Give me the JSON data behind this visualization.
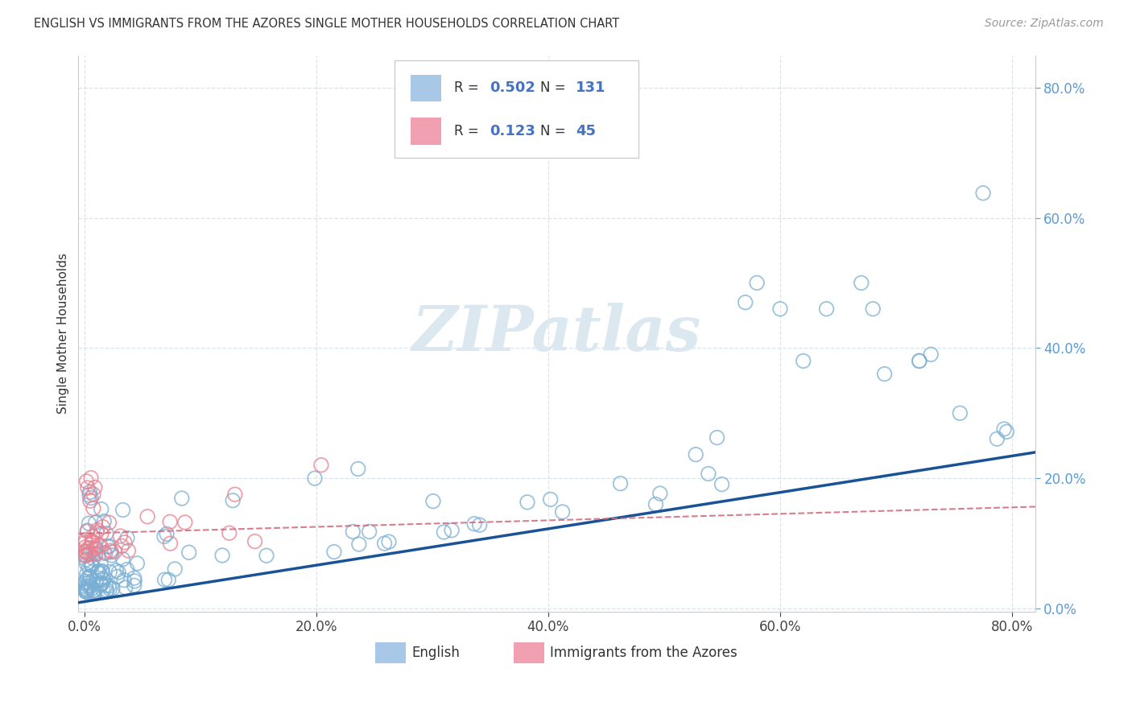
{
  "title": "ENGLISH VS IMMIGRANTS FROM THE AZORES SINGLE MOTHER HOUSEHOLDS CORRELATION CHART",
  "source": "Source: ZipAtlas.com",
  "ylabel": "Single Mother Households",
  "blue_color": "#a8c8e8",
  "pink_color": "#f0a0b0",
  "blue_edge_color": "#7aafd4",
  "pink_edge_color": "#e88090",
  "blue_line_color": "#1a5296",
  "pink_line_color": "#d06878",
  "watermark_color": "#dce8f0",
  "tick_label_color_y": "#5b9bd5",
  "tick_label_color_x": "#444444",
  "grid_color": "#d8e4ec",
  "spine_color": "#cccccc",
  "title_color": "#333333",
  "source_color": "#999999",
  "legend_border_color": "#cccccc",
  "legend_text_color": "#333333",
  "legend_value_color": "#4472c4",
  "background_color": "#ffffff",
  "xlim": [
    -0.005,
    0.82
  ],
  "ylim": [
    -0.005,
    0.85
  ],
  "xticks": [
    0.0,
    0.2,
    0.4,
    0.6,
    0.8
  ],
  "yticks": [
    0.0,
    0.2,
    0.4,
    0.6,
    0.8
  ],
  "legend_R1": "0.502",
  "legend_N1": "131",
  "legend_R2": "0.123",
  "legend_N2": "45",
  "watermark": "ZIPatlas"
}
